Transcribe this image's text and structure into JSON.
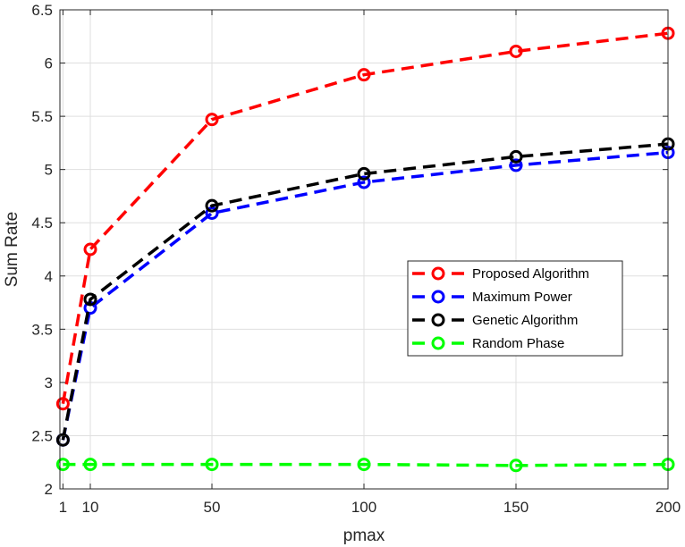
{
  "chart_data": {
    "type": "line",
    "title": "",
    "xlabel": "pmax",
    "ylabel": "Sum Rate",
    "x": [
      1,
      10,
      50,
      100,
      150,
      200
    ],
    "xlim": [
      0,
      200
    ],
    "ylim": [
      2,
      6.5
    ],
    "xticks": [
      1,
      10,
      50,
      100,
      150,
      200
    ],
    "yticks": [
      2,
      2.5,
      3,
      3.5,
      4,
      4.5,
      5,
      5.5,
      6,
      6.5
    ],
    "grid": true,
    "legend_position": "center-right",
    "series": [
      {
        "name": "Proposed Algorithm",
        "color": "#ff0000",
        "values": [
          2.8,
          4.25,
          5.47,
          5.89,
          6.11,
          6.28
        ]
      },
      {
        "name": "Maximum Power",
        "color": "#0000ff",
        "values": [
          2.46,
          3.7,
          4.59,
          4.88,
          5.04,
          5.16
        ]
      },
      {
        "name": "Genetic Algorithm",
        "color": "#000000",
        "values": [
          2.46,
          3.78,
          4.66,
          4.96,
          5.12,
          5.24
        ]
      },
      {
        "name": "Random Phase",
        "color": "#00ff00",
        "values": [
          2.23,
          2.23,
          2.23,
          2.23,
          2.22,
          2.23
        ]
      }
    ]
  }
}
